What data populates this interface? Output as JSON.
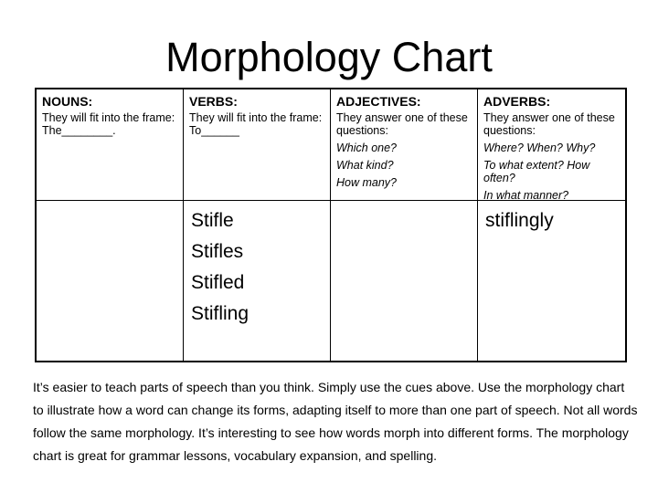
{
  "slide": {
    "title": "Morphology Chart"
  },
  "table": {
    "columns": [
      {
        "header": "NOUNS:",
        "description_lines": [
          "They will fit into the frame:",
          "The________."
        ],
        "questions": [],
        "example_words": []
      },
      {
        "header": "VERBS:",
        "description_lines": [
          "They will fit into the frame:",
          "To______"
        ],
        "questions": [],
        "example_words": [
          "Stifle",
          "Stifles",
          "Stifled",
          "Stifling"
        ]
      },
      {
        "header": "ADJECTIVES:",
        "description_lines": [
          "They answer one of these questions:"
        ],
        "questions": [
          "Which one?",
          "What kind?",
          "How many?"
        ],
        "example_words": []
      },
      {
        "header": "ADVERBS:",
        "description_lines": [
          "They answer one of these questions:"
        ],
        "questions": [
          "Where? When? Why?",
          "To what extent? How often?",
          "In what manner?"
        ],
        "example_words": [
          "stiflingly"
        ]
      }
    ]
  },
  "body_text": {
    "lines": [
      "It’s easier to teach parts of speech than you think. Simply use the cues above. Use the morphology chart",
      "to illustrate how a word can change its forms, adapting itself to more than one part of speech. Not all words",
      "follow the same morphology. It’s interesting to see how words morph into different forms. The morphology",
      "chart is great for grammar lessons, vocabulary expansion, and spelling."
    ]
  },
  "colors": {
    "background": "#ffffff",
    "text": "#000000",
    "border": "#000000"
  }
}
